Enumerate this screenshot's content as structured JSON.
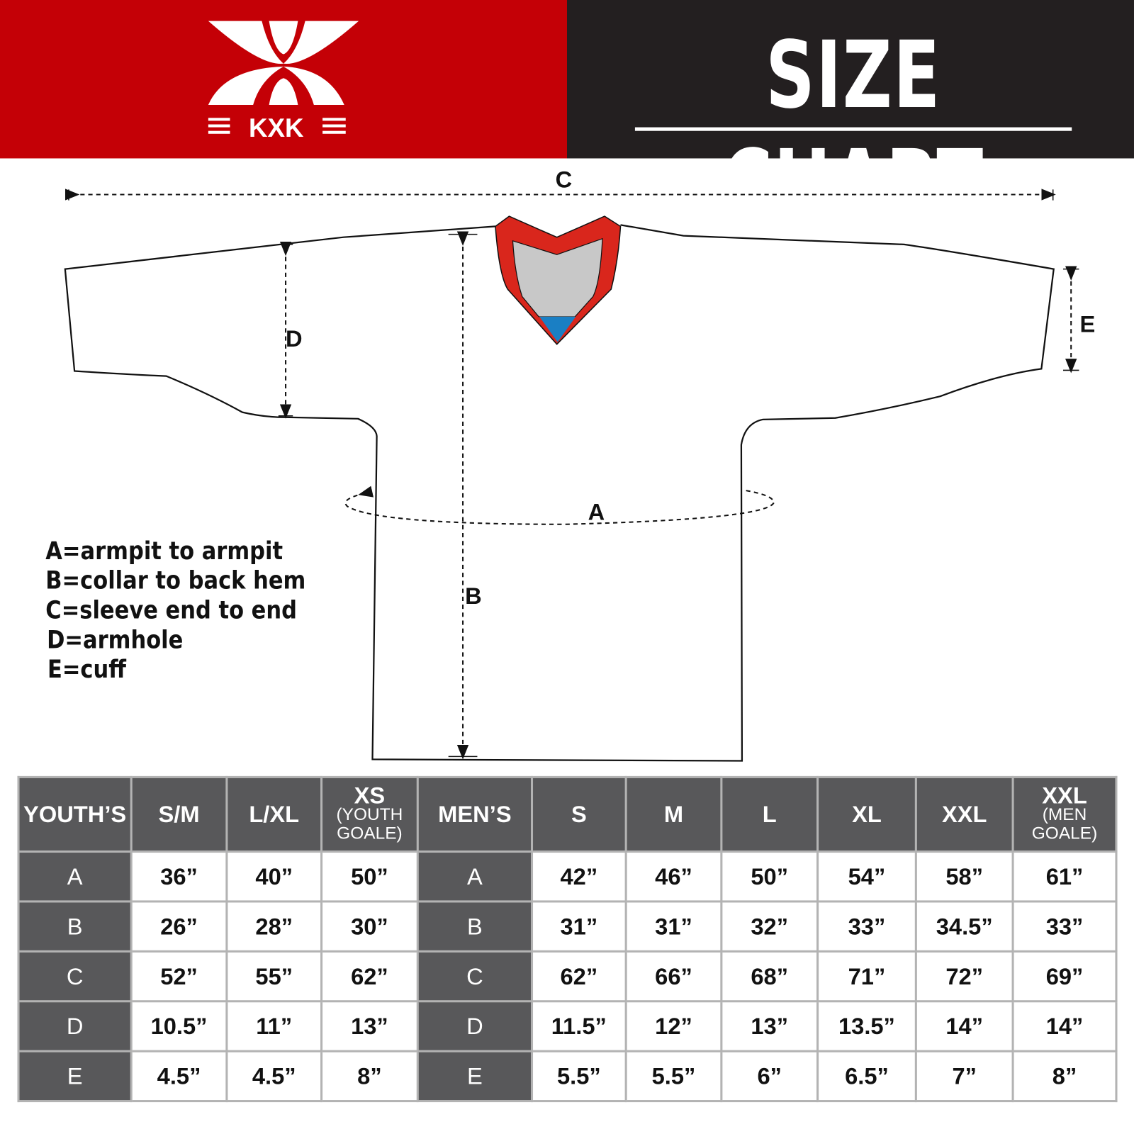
{
  "colors": {
    "brand_red": "#c40006",
    "header_dark": "#231f20",
    "table_header": "#58585a",
    "collar_red": "#d9261c",
    "collar_gray": "#c8c8c8",
    "collar_blue": "#1a7fc4"
  },
  "logo": {
    "text": "KXK"
  },
  "title": "SIZE CHART",
  "diagram": {
    "labels": {
      "a": "A",
      "b": "B",
      "c": "C",
      "d": "D",
      "e": "E"
    }
  },
  "legend": [
    "A=armpit to armpit",
    "B=collar to back hem",
    "C=sleeve end to end",
    "D=armhole",
    "E=cuff"
  ],
  "table": {
    "headers": [
      {
        "main": "YOUTH’S"
      },
      {
        "main": "S/M"
      },
      {
        "main": "L/XL"
      },
      {
        "main": "XS",
        "sub": "(YOUTH GOALE)"
      },
      {
        "main": "MEN’S"
      },
      {
        "main": "S"
      },
      {
        "main": "M"
      },
      {
        "main": "L"
      },
      {
        "main": "XL"
      },
      {
        "main": "XXL"
      },
      {
        "main": "XXL",
        "sub": "(MEN GOALE)"
      }
    ],
    "rows": [
      [
        "A",
        "36”",
        "40”",
        "50”",
        "A",
        "42”",
        "46”",
        "50”",
        "54”",
        "58”",
        "61”"
      ],
      [
        "B",
        "26”",
        "28”",
        "30”",
        "B",
        "31”",
        "31”",
        "32”",
        "33”",
        "34.5”",
        "33”"
      ],
      [
        "C",
        "52”",
        "55”",
        "62”",
        "C",
        "62”",
        "66”",
        "68”",
        "71”",
        "72”",
        "69”"
      ],
      [
        "D",
        "10.5”",
        "11”",
        "13”",
        "D",
        "11.5”",
        "12”",
        "13”",
        "13.5”",
        "14”",
        "14”"
      ],
      [
        "E",
        "4.5”",
        "4.5”",
        "8”",
        "E",
        "5.5”",
        "5.5”",
        "6”",
        "6.5”",
        "7”",
        "8”"
      ]
    ]
  }
}
